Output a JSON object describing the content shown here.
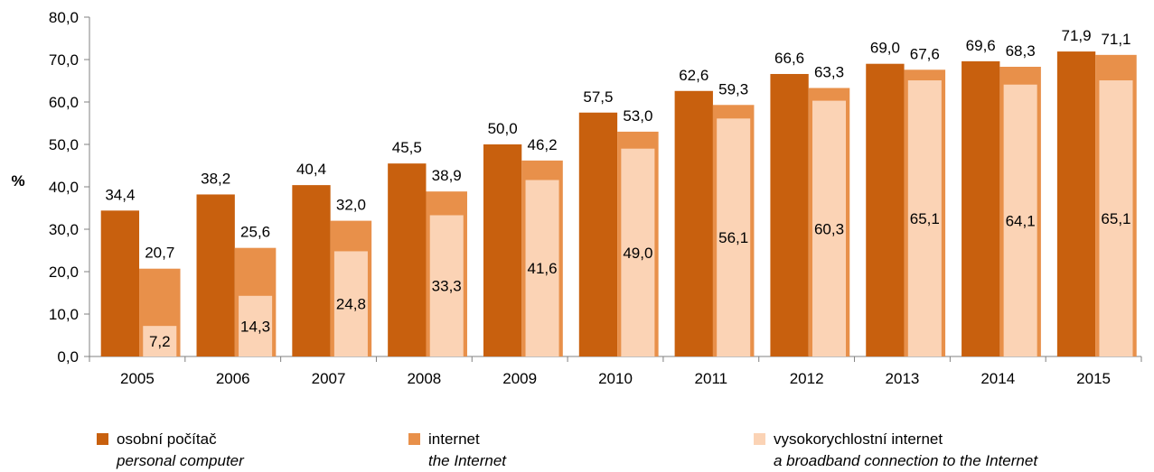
{
  "chart_data": {
    "type": "bar",
    "categories": [
      "2005",
      "2006",
      "2007",
      "2008",
      "2009",
      "2010",
      "2011",
      "2012",
      "2013",
      "2014",
      "2015"
    ],
    "series": [
      {
        "name": "osobní počítač / personal computer",
        "color": "#C8600E",
        "values": [
          34.4,
          38.2,
          40.4,
          45.5,
          50.0,
          57.5,
          62.6,
          66.6,
          69.0,
          69.6,
          71.9
        ],
        "labels": [
          "34,4",
          "38,2",
          "40,4",
          "45,5",
          "50,0",
          "57,5",
          "62,6",
          "66,6",
          "69,0",
          "69,6",
          "71,9"
        ]
      },
      {
        "name": "internet / the Internet",
        "color": "#E8904A",
        "values": [
          20.7,
          25.6,
          32.0,
          38.9,
          46.2,
          53.0,
          59.3,
          63.3,
          67.6,
          68.3,
          71.1
        ],
        "labels": [
          "20,7",
          "25,6",
          "32,0",
          "38,9",
          "46,2",
          "53,0",
          "59,3",
          "63,3",
          "67,6",
          "68,3",
          "71,1"
        ]
      },
      {
        "name": "vysokorychlostní internet / a broadband connection to the Internet",
        "color": "#FBD3B5",
        "values": [
          7.2,
          14.3,
          24.8,
          33.3,
          41.6,
          49.0,
          56.1,
          60.3,
          65.1,
          64.1,
          65.1
        ],
        "labels": [
          "7,2",
          "14,3",
          "24,8",
          "33,3",
          "41,6",
          "49,0",
          "56,1",
          "60,3",
          "65,1",
          "64,1",
          "65,1"
        ]
      }
    ],
    "ylabel": "%",
    "ylim": [
      0,
      80
    ],
    "yticks": [
      0,
      10,
      20,
      30,
      40,
      50,
      60,
      70,
      80
    ],
    "ytick_labels": [
      "0,0",
      "10,0",
      "20,0",
      "30,0",
      "40,0",
      "50,0",
      "60,0",
      "70,0",
      "80,0"
    ],
    "grid": false
  },
  "legend": {
    "pc": {
      "cs": "osobní počítač",
      "en": "personal computer",
      "color": "#C8600E"
    },
    "internet": {
      "cs": "internet",
      "en": "the Internet",
      "color": "#E8904A"
    },
    "broadband": {
      "cs": "vysokorychlostní internet",
      "en": "a broadband connection to the Internet",
      "color": "#FBD3B5"
    }
  }
}
